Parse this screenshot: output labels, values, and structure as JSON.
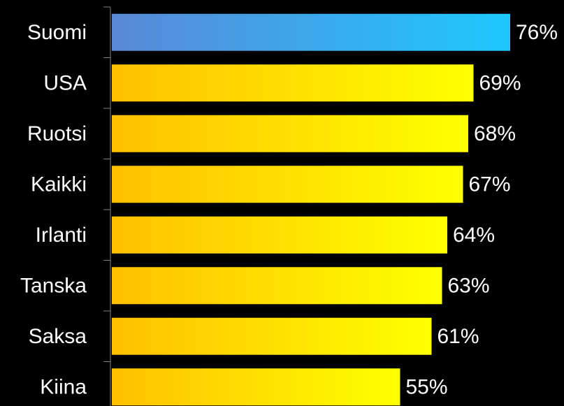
{
  "chart_data": {
    "type": "bar",
    "orientation": "horizontal",
    "categories": [
      "Suomi",
      "USA",
      "Ruotsi",
      "Kaikki",
      "Irlanti",
      "Tanska",
      "Saksa",
      "Kiina"
    ],
    "values": [
      76,
      69,
      68,
      67,
      64,
      63,
      61,
      55
    ],
    "value_labels": [
      "76%",
      "69%",
      "68%",
      "67%",
      "64%",
      "63%",
      "61%",
      "55%"
    ],
    "unit": "%",
    "title": "",
    "xlabel": "",
    "ylabel": "",
    "xlim": [
      0,
      100
    ],
    "grid": false,
    "legend": "none",
    "highlight_category": "Suomi",
    "colors": {
      "background": "#000000",
      "text": "#ffffff",
      "axis": "#808080",
      "highlight_gradient": [
        "#5a88d6",
        "#1ec8ff"
      ],
      "bar_gradient": [
        "#ffc000",
        "#ffff00"
      ]
    }
  }
}
